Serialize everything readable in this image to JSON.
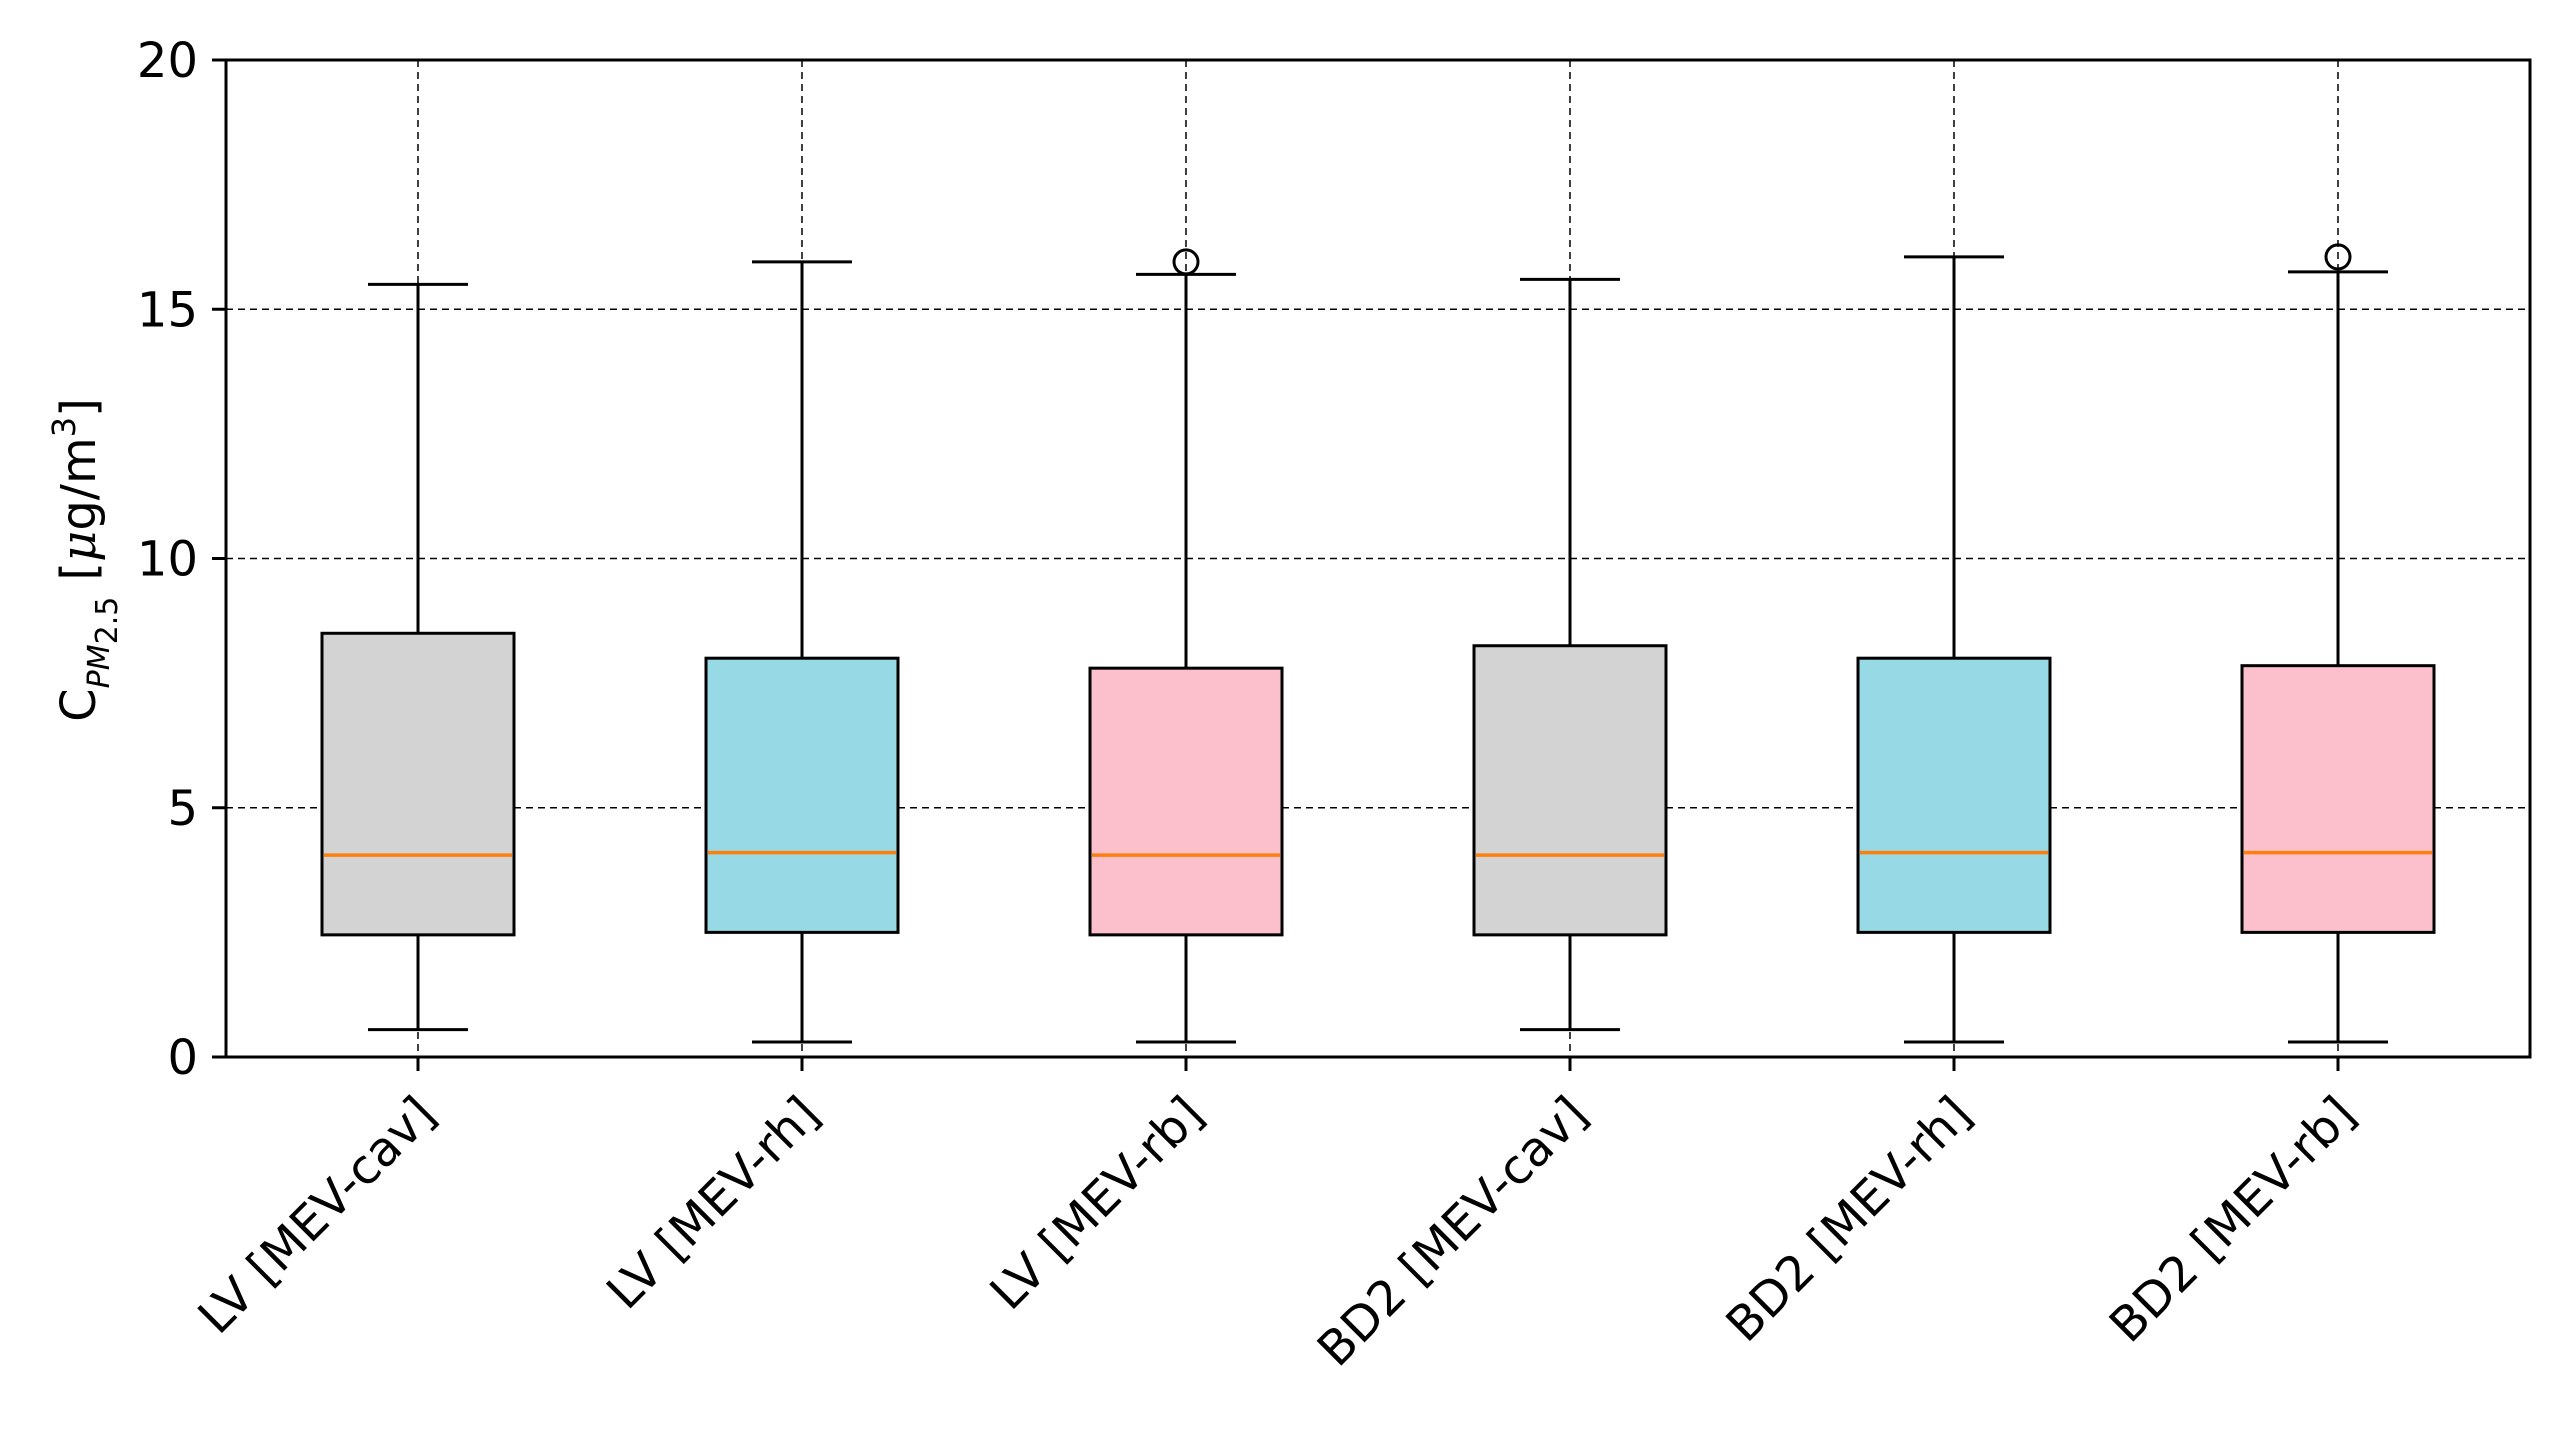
{
  "chart_data": {
    "type": "box",
    "title": "",
    "xlabel": "",
    "ylabel": {
      "symbol": "C",
      "subscript": "PM",
      "subscript_sub": "2.5",
      "unit_open": "[",
      "unit_mu": "μ",
      "unit_main": "g/m",
      "unit_sup": "3",
      "unit_close": "]"
    },
    "ylim": [
      0,
      20
    ],
    "yticks": [
      0,
      5,
      10,
      15,
      20
    ],
    "ytick_labels": [
      "0",
      "5",
      "10",
      "15",
      "20"
    ],
    "grid": "dashed",
    "median_color": "#ff7f0e",
    "categories": [
      "LV [MEV-cav]",
      "LV [MEV-rh]",
      "LV [MEV-rb]",
      "BD2 [MEV-cav]",
      "BD2 [MEV-rh]",
      "BD2 [MEV-rb]"
    ],
    "boxes": [
      {
        "label": "LV [MEV-cav]",
        "whisker_low": 0.55,
        "q1": 2.45,
        "median": 4.05,
        "q3": 8.5,
        "whisker_high": 15.5,
        "fliers": [],
        "color": "#d3d3d3"
      },
      {
        "label": "LV [MEV-rh]",
        "whisker_low": 0.3,
        "q1": 2.5,
        "median": 4.1,
        "q3": 8.0,
        "whisker_high": 15.95,
        "fliers": [],
        "color": "#97d9e5"
      },
      {
        "label": "LV [MEV-rb]",
        "whisker_low": 0.3,
        "q1": 2.45,
        "median": 4.05,
        "q3": 7.8,
        "whisker_high": 15.7,
        "fliers": [
          15.95
        ],
        "color": "#fcc0cc"
      },
      {
        "label": "BD2 [MEV-cav]",
        "whisker_low": 0.55,
        "q1": 2.45,
        "median": 4.05,
        "q3": 8.25,
        "whisker_high": 15.6,
        "fliers": [],
        "color": "#d3d3d3"
      },
      {
        "label": "BD2 [MEV-rh]",
        "whisker_low": 0.3,
        "q1": 2.5,
        "median": 4.1,
        "q3": 8.0,
        "whisker_high": 16.05,
        "fliers": [],
        "color": "#97d9e5"
      },
      {
        "label": "BD2 [MEV-rb]",
        "whisker_low": 0.3,
        "q1": 2.5,
        "median": 4.1,
        "q3": 7.85,
        "whisker_high": 15.75,
        "fliers": [
          16.05
        ],
        "color": "#fcc0cc"
      }
    ]
  }
}
